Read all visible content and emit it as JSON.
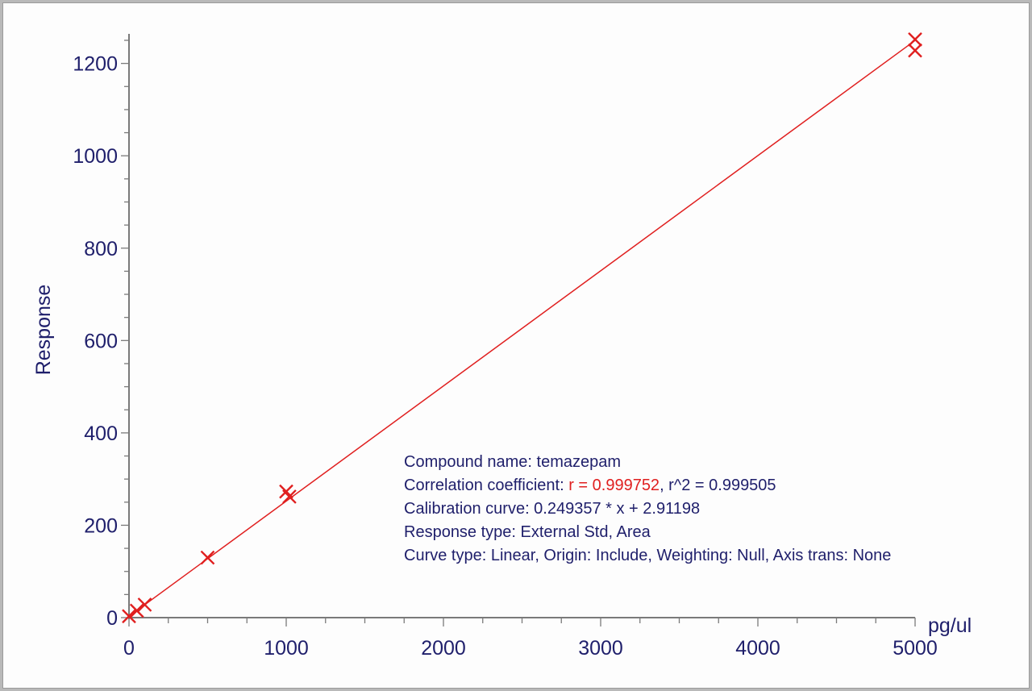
{
  "chart_data": {
    "type": "scatter",
    "title": "",
    "xlabel": "pg/ul",
    "ylabel": "Response",
    "xlim": [
      0,
      5000
    ],
    "ylim": [
      0,
      1260
    ],
    "x_ticks": [
      0,
      1000,
      2000,
      3000,
      4000,
      5000
    ],
    "y_ticks": [
      0,
      200,
      400,
      600,
      800,
      1000,
      1200
    ],
    "grid": false,
    "series": [
      {
        "type": "scatter",
        "marker": "x",
        "color": "#e01f1f",
        "points": [
          {
            "x": 0,
            "y": 3
          },
          {
            "x": 50,
            "y": 15
          },
          {
            "x": 100,
            "y": 28
          },
          {
            "x": 500,
            "y": 130
          },
          {
            "x": 1000,
            "y": 273
          },
          {
            "x": 1020,
            "y": 262
          },
          {
            "x": 5000,
            "y": 1252
          },
          {
            "x": 5000,
            "y": 1228
          }
        ]
      },
      {
        "type": "line",
        "color": "#e01f1f",
        "slope": 0.249357,
        "intercept": 2.91198,
        "x_range": [
          0,
          5000
        ]
      }
    ]
  },
  "annotation": {
    "compound": "Compound name: temazepam",
    "corr_prefix": "Correlation coefficient: ",
    "corr_r": "r = 0.999752",
    "corr_rest": ", r^2 = 0.999505",
    "calibration": "Calibration curve: 0.249357 * x + 2.91198",
    "response_type": "Response type: External Std, Area",
    "curve_type": "Curve type: Linear, Origin: Include, Weighting: Null, Axis trans: None"
  },
  "colors": {
    "axis": "#7a7a7a",
    "text": "#1f1f6b",
    "series": "#e01f1f"
  }
}
